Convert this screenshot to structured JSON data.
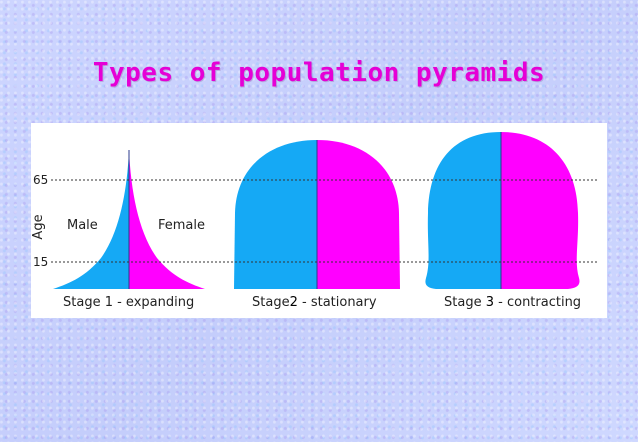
{
  "title": "Types of population pyramids",
  "figure": {
    "axis_label": "Age",
    "ticks": [
      "65",
      "15"
    ],
    "male_label": "Male",
    "female_label": "Female",
    "colors": {
      "male": "#15a9f5",
      "female": "#ff00ff",
      "divider": "#2b3a8c",
      "guide": "#333333"
    },
    "stages": [
      {
        "caption_prefix": "Stage 1",
        "caption_suffix": "- expanding",
        "name": "expanding"
      },
      {
        "caption_prefix": "Stage",
        "number": "2",
        "caption_suffix": "- stationary",
        "name": "stationary"
      },
      {
        "caption_prefix": "Stage",
        "number": "3",
        "caption_suffix": "- contracting",
        "name": "contracting"
      }
    ]
  }
}
